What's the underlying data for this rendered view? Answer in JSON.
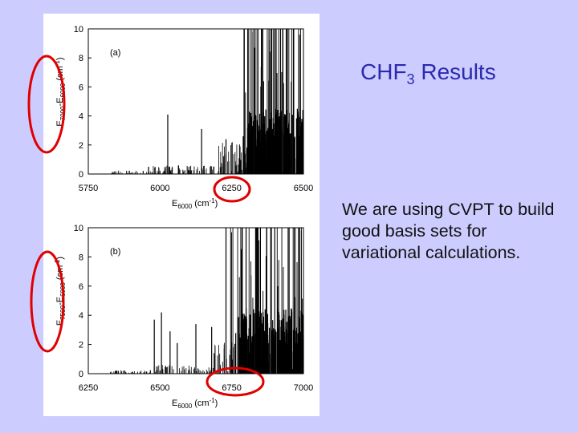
{
  "slide": {
    "title_main": "CHF",
    "title_subscript": "3",
    "title_rest": " Results",
    "body": "We are using CVPT to build good basis sets for variational calculations."
  },
  "colors": {
    "background": "#ccccff",
    "title": "#2a2ab0",
    "highlight_circle": "#e00000",
    "panel": "#ffffff"
  },
  "chart_data": [
    {
      "type": "bar",
      "panel_label": "(a)",
      "xlabel": {
        "main": "E",
        "sub": "6000",
        "unit": "(cm",
        "sup": "-1",
        "close": ")"
      },
      "ylabel": {
        "main": "E",
        "sub1": "7000",
        "mid": "-E",
        "sub2": "6000",
        "unit": " (cm",
        "sup": "-1",
        "close": ")"
      },
      "xlim": [
        5750,
        6500
      ],
      "ylim": [
        0,
        10
      ],
      "xticks": [
        "5750",
        "6000",
        "6250",
        "6500"
      ],
      "yticks": [
        "0",
        "2",
        "4",
        "6",
        "8",
        "10"
      ],
      "notable_lines": [
        {
          "x": 5960,
          "y": 0.5
        },
        {
          "x": 6027,
          "y": 4.1
        },
        {
          "x": 6145,
          "y": 3.1
        },
        {
          "x": 6230,
          "y": 2.4
        },
        {
          "x": 6290,
          "y": 2.6
        },
        {
          "x": 6330,
          "y": 8.7
        },
        {
          "x": 6355,
          "y": 10
        },
        {
          "x": 6380,
          "y": 10
        },
        {
          "x": 6400,
          "y": 10
        },
        {
          "x": 6420,
          "y": 10
        },
        {
          "x": 6440,
          "y": 10
        },
        {
          "x": 6465,
          "y": 10
        }
      ]
    },
    {
      "type": "bar",
      "panel_label": "(b)",
      "xlabel": {
        "main": "E",
        "sub": "6000",
        "unit": "(cm",
        "sup": "-1",
        "close": ")"
      },
      "ylabel": {
        "main": "E",
        "sub1": "7500",
        "mid": "-E",
        "sub2": "6000",
        "unit": " (cm",
        "sup": "-1",
        "close": ")"
      },
      "xlim": [
        6250,
        7000
      ],
      "ylim": [
        0,
        10
      ],
      "xticks": [
        "6250",
        "6500",
        "6750",
        "7000"
      ],
      "yticks": [
        "0",
        "2",
        "4",
        "6",
        "8",
        "10"
      ],
      "notable_lines": [
        {
          "x": 6480,
          "y": 3.7
        },
        {
          "x": 6505,
          "y": 4.2
        },
        {
          "x": 6535,
          "y": 2.9
        },
        {
          "x": 6560,
          "y": 2.1
        },
        {
          "x": 6625,
          "y": 3.4
        },
        {
          "x": 6680,
          "y": 3.2
        },
        {
          "x": 6730,
          "y": 10
        },
        {
          "x": 6800,
          "y": 10
        },
        {
          "x": 6850,
          "y": 10
        },
        {
          "x": 6900,
          "y": 10
        },
        {
          "x": 6950,
          "y": 10
        }
      ]
    }
  ]
}
